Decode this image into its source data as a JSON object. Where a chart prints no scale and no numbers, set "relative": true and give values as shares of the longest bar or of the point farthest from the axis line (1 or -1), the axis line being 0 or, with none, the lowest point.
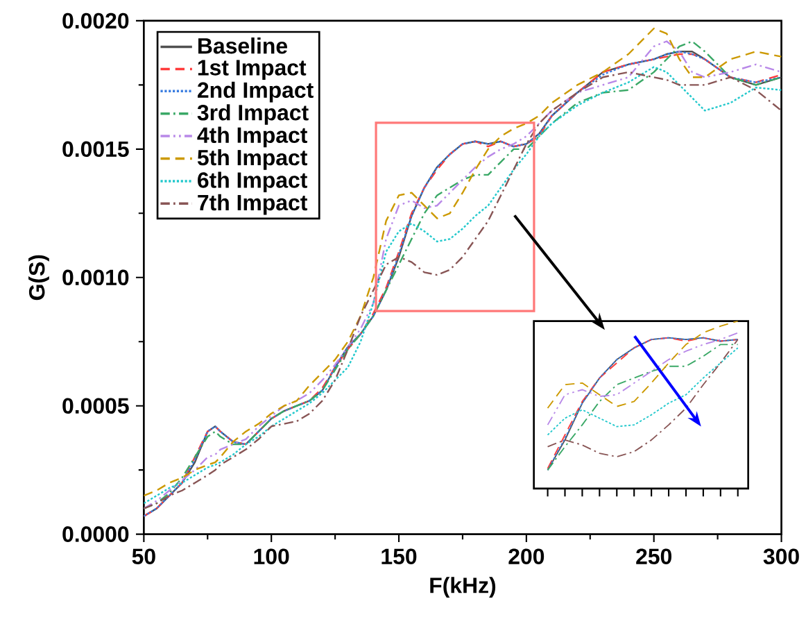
{
  "chart_data": [
    {
      "type": "line",
      "xlabel": "F(kHz)",
      "ylabel": "G(S)",
      "xlim": [
        50,
        300
      ],
      "ylim": [
        0,
        0.002
      ],
      "xticks": [
        50,
        100,
        150,
        200,
        250,
        300
      ],
      "yticks": [
        {
          "value": 0,
          "label": "0.0000"
        },
        {
          "value": 0.0005,
          "label": "0.0005"
        },
        {
          "value": 0.001,
          "label": "0.0010"
        },
        {
          "value": 0.0015,
          "label": "0.0015"
        },
        {
          "value": 0.002,
          "label": "0.0020"
        }
      ],
      "legend": "top left",
      "grid": false,
      "x": [
        50,
        55,
        60,
        65,
        70,
        75,
        78,
        80,
        85,
        90,
        95,
        100,
        105,
        110,
        115,
        120,
        125,
        130,
        135,
        140,
        145,
        150,
        155,
        160,
        165,
        170,
        175,
        180,
        185,
        190,
        195,
        200,
        205,
        210,
        220,
        230,
        240,
        250,
        255,
        260,
        265,
        270,
        280,
        290,
        300
      ],
      "series": [
        {
          "name": "Baseline",
          "color": "#505050",
          "line_style": "solid",
          "values": [
            7e-05,
            0.0001,
            0.00015,
            0.0002,
            0.00028,
            0.0004,
            0.00042,
            0.0004,
            0.00036,
            0.00035,
            0.0004,
            0.00045,
            0.00048,
            0.0005,
            0.00052,
            0.00056,
            0.00065,
            0.00073,
            0.00078,
            0.00085,
            0.00095,
            0.00108,
            0.00124,
            0.00135,
            0.00143,
            0.00148,
            0.00152,
            0.00153,
            0.00152,
            0.00153,
            0.00151,
            0.00152,
            0.00156,
            0.00163,
            0.00172,
            0.0018,
            0.00183,
            0.00185,
            0.00187,
            0.00188,
            0.00188,
            0.00185,
            0.00178,
            0.00175,
            0.00178
          ]
        },
        {
          "name": "1st Impact",
          "color": "#ff3b3b",
          "line_style": "dashed",
          "values": [
            7e-05,
            0.0001,
            0.00015,
            0.0002,
            0.0003,
            0.0004,
            0.00042,
            0.0004,
            0.00036,
            0.00035,
            0.0004,
            0.00045,
            0.00048,
            0.0005,
            0.00052,
            0.00057,
            0.00065,
            0.00072,
            0.00078,
            0.00086,
            0.00096,
            0.0011,
            0.00125,
            0.00135,
            0.00142,
            0.00148,
            0.00152,
            0.00153,
            0.00151,
            0.00153,
            0.00151,
            0.00152,
            0.00155,
            0.00163,
            0.00172,
            0.0018,
            0.00183,
            0.00185,
            0.00186,
            0.00187,
            0.00187,
            0.00185,
            0.00178,
            0.00176,
            0.00179
          ]
        },
        {
          "name": "2nd Impact",
          "color": "#3a7de0",
          "line_style": "dotted",
          "values": [
            7e-05,
            0.0001,
            0.00015,
            0.0002,
            0.00029,
            0.0004,
            0.00042,
            0.0004,
            0.00036,
            0.00035,
            0.0004,
            0.00045,
            0.00048,
            0.0005,
            0.00052,
            0.00056,
            0.00065,
            0.00073,
            0.00078,
            0.00085,
            0.00095,
            0.00109,
            0.00124,
            0.00135,
            0.00143,
            0.00148,
            0.00152,
            0.00153,
            0.00152,
            0.00153,
            0.00151,
            0.00152,
            0.00156,
            0.00163,
            0.00172,
            0.00179,
            0.00183,
            0.00185,
            0.00187,
            0.00188,
            0.00187,
            0.00185,
            0.00178,
            0.00176,
            0.00178
          ]
        },
        {
          "name": "3rd Impact",
          "color": "#3aa866",
          "line_style": "dashdot",
          "values": [
            0.0001,
            0.00012,
            0.00016,
            0.00022,
            0.0003,
            0.00038,
            0.0004,
            0.00038,
            0.00035,
            0.00035,
            0.0004,
            0.00045,
            0.00048,
            0.0005,
            0.00052,
            0.00056,
            0.00064,
            0.00072,
            0.00078,
            0.00085,
            0.00095,
            0.00105,
            0.00115,
            0.00125,
            0.00132,
            0.00135,
            0.00138,
            0.0014,
            0.0014,
            0.00145,
            0.0015,
            0.0015,
            0.00155,
            0.0016,
            0.00168,
            0.00172,
            0.00173,
            0.0018,
            0.00185,
            0.0019,
            0.00192,
            0.00188,
            0.00178,
            0.00175,
            0.00178
          ]
        },
        {
          "name": "4th Impact",
          "color": "#b888e8",
          "line_style": "dashdotdot",
          "values": [
            0.0001,
            0.00013,
            0.00017,
            0.00021,
            0.00025,
            0.0003,
            0.00031,
            0.00033,
            0.00035,
            0.00037,
            0.00042,
            0.00046,
            0.0005,
            0.00052,
            0.00055,
            0.0006,
            0.00066,
            0.00073,
            0.0008,
            0.0009,
            0.00115,
            0.00128,
            0.0013,
            0.00127,
            0.00128,
            0.00133,
            0.00138,
            0.00143,
            0.00147,
            0.0015,
            0.00152,
            0.00155,
            0.0016,
            0.00165,
            0.00172,
            0.00175,
            0.00178,
            0.0019,
            0.00192,
            0.00188,
            0.0018,
            0.00178,
            0.0018,
            0.00183,
            0.0018
          ]
        },
        {
          "name": "5th Impact",
          "color": "#cc9900",
          "line_style": "dashed",
          "values": [
            0.00015,
            0.00017,
            0.0002,
            0.00022,
            0.00025,
            0.00027,
            0.00028,
            0.0003,
            0.00036,
            0.0004,
            0.00043,
            0.00047,
            0.0005,
            0.00052,
            0.00058,
            0.00063,
            0.00068,
            0.00075,
            0.00085,
            0.001,
            0.00122,
            0.00132,
            0.00133,
            0.00128,
            0.00123,
            0.00125,
            0.00133,
            0.00142,
            0.0015,
            0.00155,
            0.00158,
            0.0016,
            0.00163,
            0.00168,
            0.00175,
            0.0018,
            0.00187,
            0.00197,
            0.00195,
            0.00185,
            0.00178,
            0.00178,
            0.00185,
            0.00188,
            0.00186
          ]
        },
        {
          "name": "6th Impact",
          "color": "#22c8cc",
          "line_style": "dotted",
          "values": [
            0.00012,
            0.00015,
            0.00018,
            0.0002,
            0.00023,
            0.00026,
            0.00027,
            0.00028,
            0.00031,
            0.00035,
            0.00038,
            0.00042,
            0.00045,
            0.00048,
            0.00051,
            0.00055,
            0.0006,
            0.00065,
            0.00075,
            0.0009,
            0.0011,
            0.00118,
            0.00121,
            0.00118,
            0.00114,
            0.00115,
            0.00119,
            0.00124,
            0.00128,
            0.00135,
            0.00142,
            0.00148,
            0.00155,
            0.0016,
            0.00167,
            0.00172,
            0.00176,
            0.00182,
            0.0018,
            0.00175,
            0.0017,
            0.00165,
            0.00168,
            0.00174,
            0.00173
          ]
        },
        {
          "name": "7th Impact",
          "color": "#885555",
          "line_style": "dashdot",
          "values": [
            0.0001,
            0.00012,
            0.00015,
            0.00017,
            0.0002,
            0.00023,
            0.00025,
            0.00027,
            0.0003,
            0.00033,
            0.00037,
            0.00042,
            0.00043,
            0.00044,
            0.00047,
            0.00052,
            0.0006,
            0.00072,
            0.00085,
            0.00095,
            0.00105,
            0.00108,
            0.00106,
            0.00102,
            0.00101,
            0.00103,
            0.00108,
            0.00115,
            0.00122,
            0.00132,
            0.00142,
            0.00152,
            0.0016,
            0.00165,
            0.00172,
            0.00178,
            0.0018,
            0.00178,
            0.00177,
            0.00175,
            0.00175,
            0.00175,
            0.00178,
            0.00173,
            0.00165
          ]
        }
      ]
    },
    {
      "type": "line",
      "relative": true,
      "categories": [
        null,
        null,
        null,
        null,
        null,
        null,
        null,
        null,
        null,
        null,
        null,
        null
      ],
      "series": [
        {
          "color": "#505050",
          "line_style": "solid",
          "values": [
            0.11,
            0.29,
            0.51,
            0.66,
            0.77,
            0.84,
            0.89,
            0.9,
            0.89,
            0.9,
            0.88,
            0.89
          ]
        },
        {
          "color": "#ff3b3b",
          "line_style": "dashed",
          "values": [
            0.12,
            0.32,
            0.52,
            0.66,
            0.75,
            0.84,
            0.89,
            0.9,
            0.88,
            0.9,
            0.88,
            0.89
          ]
        },
        {
          "color": "#3a7de0",
          "line_style": "dotted",
          "values": [
            0.11,
            0.3,
            0.51,
            0.66,
            0.77,
            0.84,
            0.89,
            0.9,
            0.89,
            0.9,
            0.88,
            0.89
          ]
        },
        {
          "color": "#3aa866",
          "line_style": "dashdot",
          "values": [
            0.11,
            0.25,
            0.38,
            0.52,
            0.62,
            0.66,
            0.7,
            0.73,
            0.73,
            0.79,
            0.86,
            0.86
          ]
        },
        {
          "color": "#b888e8",
          "line_style": "dashdotdot",
          "values": [
            0.38,
            0.56,
            0.59,
            0.55,
            0.56,
            0.63,
            0.7,
            0.77,
            0.82,
            0.86,
            0.89,
            0.93
          ]
        },
        {
          "color": "#cc9900",
          "line_style": "dashed",
          "values": [
            0.48,
            0.62,
            0.63,
            0.56,
            0.49,
            0.52,
            0.63,
            0.75,
            0.86,
            0.93,
            0.97,
            1
          ]
        },
        {
          "color": "#22c8cc",
          "line_style": "dotted",
          "values": [
            0.32,
            0.42,
            0.47,
            0.42,
            0.37,
            0.38,
            0.44,
            0.51,
            0.56,
            0.66,
            0.75,
            0.84
          ]
        },
        {
          "color": "#885555",
          "line_style": "dashdot",
          "values": [
            0.25,
            0.29,
            0.26,
            0.21,
            0.19,
            0.22,
            0.29,
            0.38,
            0.48,
            0.62,
            0.75,
            0.89
          ]
        }
      ]
    }
  ]
}
